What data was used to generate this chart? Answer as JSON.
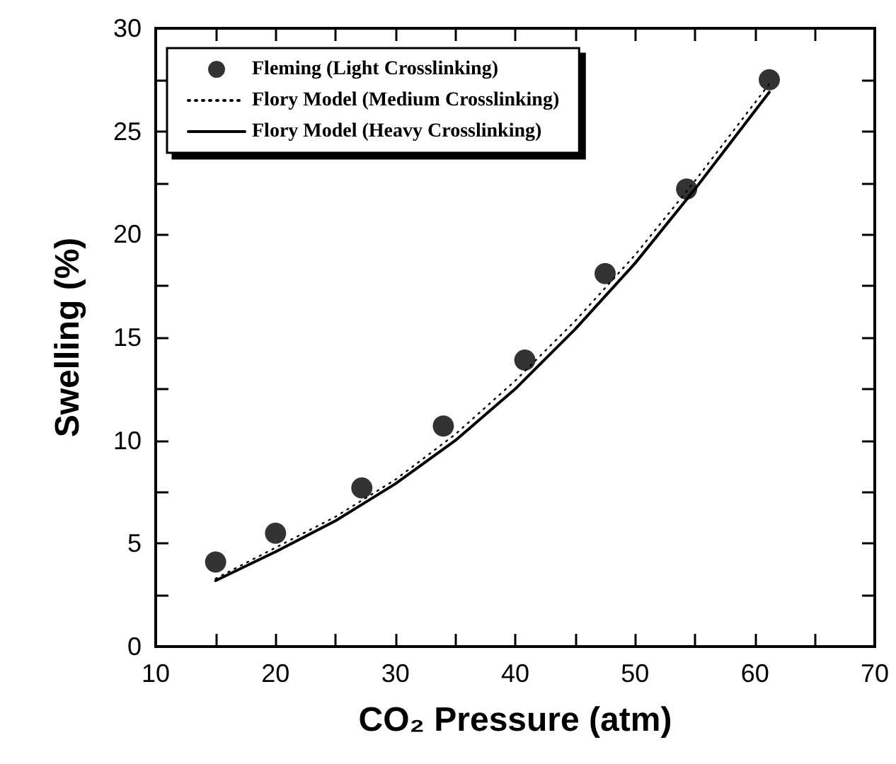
{
  "chart_data": {
    "type": "scatter",
    "xlabel": "CO₂ Pressure (atm)",
    "ylabel": "Swelling (%)",
    "xlim": [
      10,
      70
    ],
    "xticks": [
      10,
      20,
      30,
      40,
      50,
      60,
      70
    ],
    "ylim": [
      0,
      30
    ],
    "yticks": [
      0,
      5,
      10,
      15,
      20,
      25,
      30
    ],
    "grid": false,
    "legend": "top left",
    "series": [
      {
        "name": "Fleming (Light Crosslinking)",
        "marker": "circle",
        "color": "#000000",
        "x": [
          15,
          20,
          27.2,
          34,
          40.8,
          47.5,
          54.3,
          61.2
        ],
        "values": [
          4.1,
          5.5,
          7.7,
          10.7,
          13.9,
          18.1,
          22.2,
          27.5
        ]
      },
      {
        "name": "Flory Model (Medium Crosslinking)",
        "type": "line",
        "marker": "none",
        "line_style": "dotted",
        "color": "#000000",
        "x": [
          15,
          20,
          25,
          30,
          35,
          40,
          45,
          50,
          55,
          61.2
        ],
        "values": [
          3.3,
          4.8,
          6.3,
          8.1,
          10.3,
          12.9,
          15.8,
          19.0,
          22.6,
          27.3
        ]
      },
      {
        "name": "Flory Model (Heavy Crosslinking)",
        "type": "line",
        "marker": "none",
        "line_style": "solid",
        "color": "#000000",
        "x": [
          15,
          20,
          25,
          30,
          35,
          40,
          45,
          50,
          55,
          61.2
        ],
        "values": [
          3.2,
          4.6,
          6.1,
          7.9,
          10.0,
          12.5,
          15.4,
          18.6,
          22.2,
          26.9
        ]
      }
    ]
  }
}
